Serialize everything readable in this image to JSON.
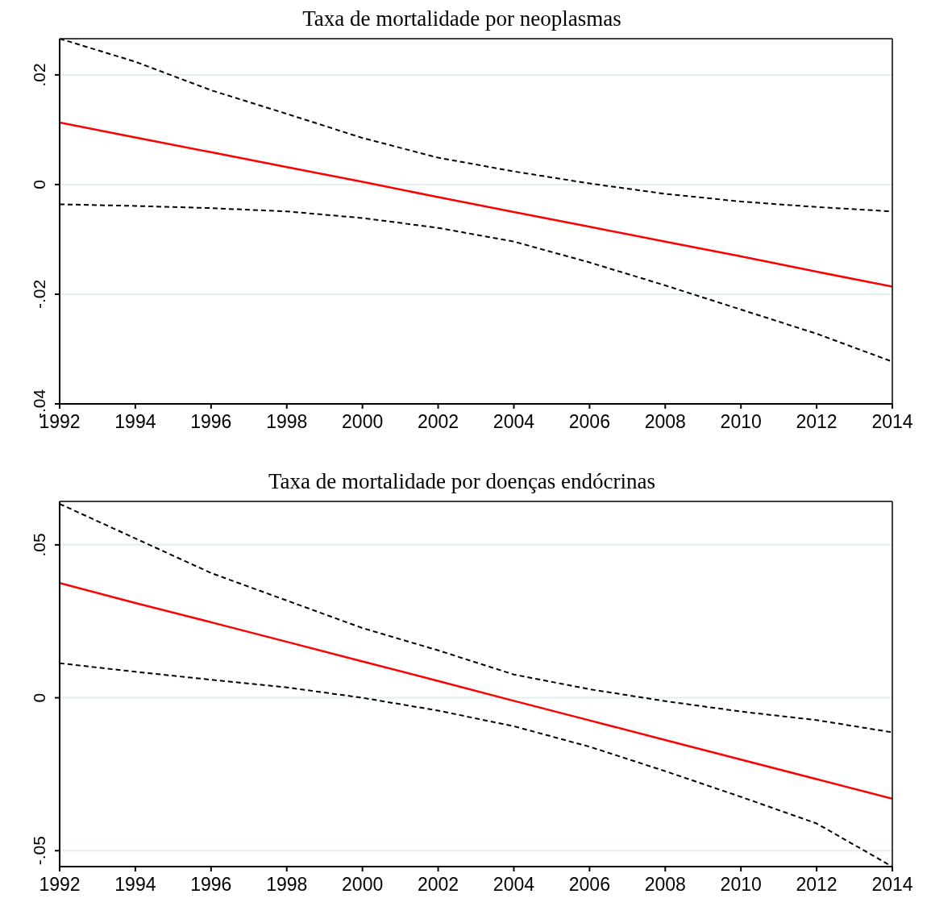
{
  "chart_data": [
    {
      "type": "line",
      "title": "Taxa de mortalidade por neoplasmas",
      "x": [
        1992,
        1994,
        1996,
        1998,
        2000,
        2002,
        2004,
        2006,
        2008,
        2010,
        2012,
        2014
      ],
      "xlim": [
        1992,
        2014
      ],
      "xticks": [
        1992,
        1994,
        1996,
        1998,
        2000,
        2002,
        2004,
        2006,
        2008,
        2010,
        2012,
        2014
      ],
      "ylim": [
        -0.04,
        0.0266
      ],
      "yticks": [
        {
          "value": 0.02,
          "label": ".02"
        },
        0,
        {
          "value": -0.02,
          "label": "-.02"
        },
        {
          "value": -0.04,
          "label": "-.04"
        }
      ],
      "grid": "y",
      "marker": "none",
      "line_style": "solid",
      "series": [
        {
          "color": "#000000",
          "line_style": "dashed",
          "values": [
            0.0266,
            0.0224,
            0.0172,
            0.0129,
            0.0085,
            0.0049,
            0.0024,
            0.0002,
            -0.0017,
            -0.0031,
            -0.0041,
            -0.0049
          ]
        },
        {
          "color": "#000000",
          "line_style": "dashed",
          "values": [
            -0.0036,
            -0.0039,
            -0.0043,
            -0.0049,
            -0.0061,
            -0.0079,
            -0.0104,
            -0.0142,
            -0.0184,
            -0.0228,
            -0.0272,
            -0.0323
          ]
        },
        {
          "color": "#ff0000",
          "values": [
            0.0113,
            0.0086,
            0.0059,
            0.0032,
            0.0005,
            -0.0023,
            -0.005,
            -0.0077,
            -0.0104,
            -0.0131,
            -0.0159,
            -0.0186
          ]
        }
      ]
    },
    {
      "type": "line",
      "title": "Taxa de mortalidade por doenças endócrinas",
      "x": [
        1992,
        1994,
        1996,
        1998,
        2000,
        2002,
        2004,
        2006,
        2008,
        2010,
        2012,
        2014
      ],
      "xlim": [
        1992,
        2014
      ],
      "xticks": [
        1992,
        1994,
        1996,
        1998,
        2000,
        2002,
        2004,
        2006,
        2008,
        2010,
        2012,
        2014
      ],
      "ylim": [
        -0.0552,
        0.0642
      ],
      "yticks": [
        {
          "value": 0.05,
          "label": ".05"
        },
        0,
        {
          "value": -0.05,
          "label": "-.05"
        }
      ],
      "grid": "y",
      "marker": "none",
      "line_style": "solid",
      "series": [
        {
          "color": "#000000",
          "line_style": "dashed",
          "values": [
            0.0634,
            0.0521,
            0.0408,
            0.0318,
            0.0228,
            0.0155,
            0.0076,
            0.0028,
            -0.0011,
            -0.0045,
            -0.0073,
            -0.0113
          ]
        },
        {
          "color": "#000000",
          "line_style": "dashed",
          "values": [
            0.0113,
            0.0085,
            0.0059,
            0.0034,
            0,
            -0.0042,
            -0.0093,
            -0.016,
            -0.024,
            -0.0324,
            -0.0411,
            -0.0552
          ]
        },
        {
          "color": "#ff0000",
          "values": [
            0.0375,
            0.031,
            0.0247,
            0.0183,
            0.0119,
            0.0055,
            -0.001,
            -0.0074,
            -0.0138,
            -0.0202,
            -0.0266,
            -0.033
          ]
        }
      ]
    }
  ]
}
